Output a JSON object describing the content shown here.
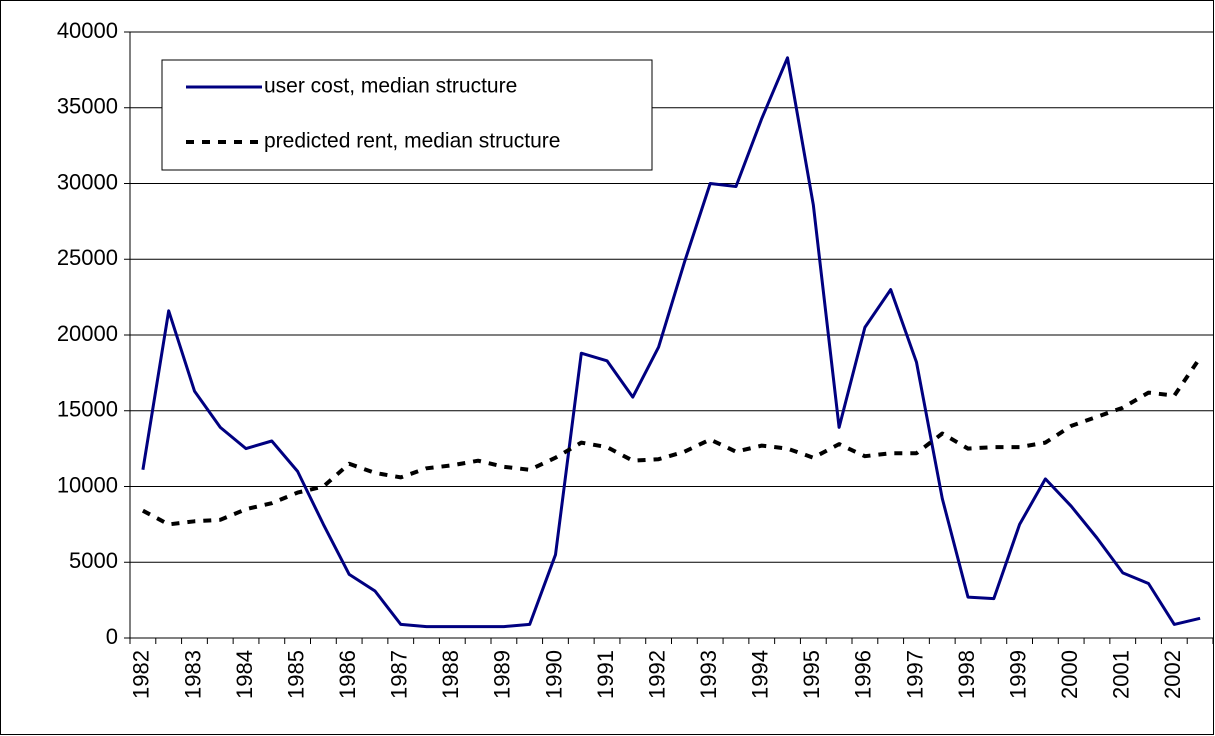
{
  "chart_data": {
    "type": "line",
    "categories": [
      "1982",
      null,
      "1983",
      null,
      "1984",
      null,
      "1985",
      null,
      "1986",
      null,
      "1987",
      null,
      "1988",
      null,
      "1989",
      null,
      "1990",
      null,
      "1991",
      null,
      "1992",
      null,
      "1993",
      null,
      "1994",
      null,
      "1995",
      null,
      "1996",
      null,
      "1997",
      null,
      "1998",
      null,
      "1999",
      null,
      "2000",
      null,
      "2001",
      null,
      "2002",
      null
    ],
    "series": [
      {
        "name": "user cost, median structure",
        "color": "#000080",
        "dash": "solid",
        "values": [
          11100,
          21600,
          16300,
          13900,
          12500,
          13000,
          11000,
          7500,
          4200,
          3100,
          900,
          750,
          750,
          750,
          750,
          900,
          5500,
          18800,
          18300,
          15900,
          19200,
          24800,
          30000,
          29800,
          34300,
          38300,
          28600,
          13900,
          20500,
          23000,
          18200,
          9200,
          2700,
          2600,
          7500,
          10500,
          8700,
          6600,
          4300,
          3600,
          900,
          1300
        ]
      },
      {
        "name": "predicted rent, median structure",
        "color": "#000000",
        "dash": "dotted",
        "values": [
          8400,
          7500,
          7700,
          7800,
          8500,
          8900,
          9600,
          10000,
          11500,
          10900,
          10600,
          11200,
          11400,
          11700,
          11300,
          11100,
          11900,
          12900,
          12600,
          11700,
          11800,
          12300,
          13100,
          12300,
          12700,
          12500,
          11900,
          12800,
          12000,
          12200,
          12200,
          13500,
          12500,
          12600,
          12600,
          12900,
          14000,
          14600,
          15200,
          16200,
          16000,
          18500
        ]
      }
    ],
    "ylim": [
      0,
      40000
    ],
    "yticks": [
      0,
      5000,
      10000,
      15000,
      20000,
      25000,
      30000,
      35000,
      40000
    ],
    "grid": true,
    "legend": "upper left"
  }
}
